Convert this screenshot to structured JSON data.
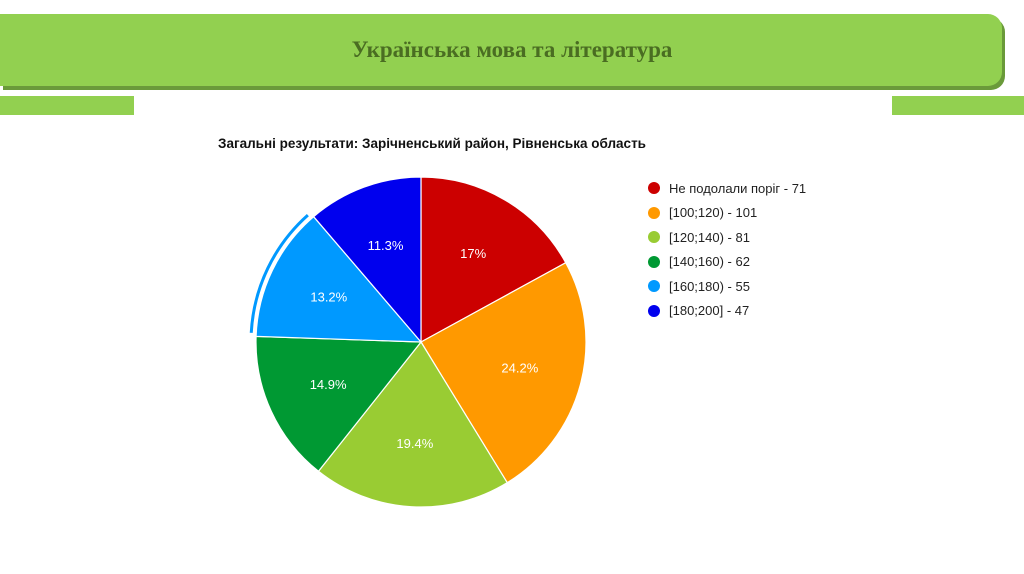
{
  "slide": {
    "title": "Українська мова та література"
  },
  "chart_data": {
    "type": "pie",
    "title": "Загальні результати: Зарічненський район, Рівненська область",
    "legend_position": "right",
    "series": [
      {
        "name": "Не подолали поріг",
        "value": 71,
        "percent_label": "17%",
        "color": "#cc0000",
        "legend_label": "Не подолали поріг - 71"
      },
      {
        "name": "[100;120)",
        "value": 101,
        "percent_label": "24.2%",
        "color": "#ff9900",
        "legend_label": "[100;120) - 101"
      },
      {
        "name": "[120;140)",
        "value": 81,
        "percent_label": "19.4%",
        "color": "#99cc33",
        "legend_label": "[120;140) - 81"
      },
      {
        "name": "[140;160)",
        "value": 62,
        "percent_label": "14.9%",
        "color": "#009933",
        "legend_label": "[140;160) - 62"
      },
      {
        "name": "[160;180)",
        "value": 55,
        "percent_label": "13.2%",
        "color": "#0099ff",
        "legend_label": "[160;180) - 55"
      },
      {
        "name": "[180;200]",
        "value": 47,
        "percent_label": "11.3%",
        "color": "#0000ee",
        "legend_label": "[180;200] - 47"
      }
    ]
  }
}
